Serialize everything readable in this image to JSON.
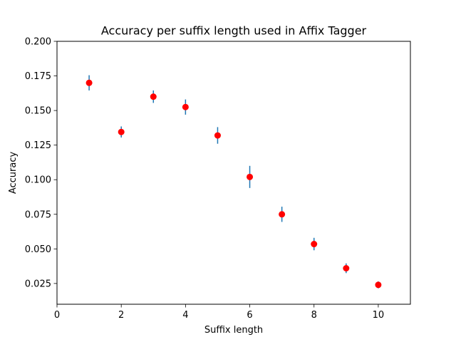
{
  "chart_data": {
    "type": "scatter",
    "title": "Accuracy per suffix length used in Affix Tagger",
    "xlabel": "Suffix length",
    "ylabel": "Accuracy",
    "xlim": [
      0,
      11
    ],
    "ylim": [
      0.01,
      0.2
    ],
    "xticks": [
      0,
      2,
      4,
      6,
      8,
      10
    ],
    "yticks": [
      0.025,
      0.05,
      0.075,
      0.1,
      0.125,
      0.15,
      0.175,
      0.2
    ],
    "ytick_labels": [
      "0.025",
      "0.050",
      "0.075",
      "0.100",
      "0.125",
      "0.150",
      "0.175",
      "0.200"
    ],
    "grid": false,
    "series": [
      {
        "x": [
          1,
          2,
          3,
          4,
          5,
          6,
          7,
          8,
          9,
          10
        ],
        "y": [
          0.17,
          0.1345,
          0.16,
          0.1525,
          0.132,
          0.102,
          0.075,
          0.0535,
          0.036,
          0.024
        ],
        "yerr": [
          0.0055,
          0.004,
          0.0045,
          0.0055,
          0.006,
          0.008,
          0.0055,
          0.0045,
          0.0035,
          0.0025
        ],
        "marker_color": "#ff0000",
        "errorbar_color": "#1f77b4"
      }
    ]
  }
}
